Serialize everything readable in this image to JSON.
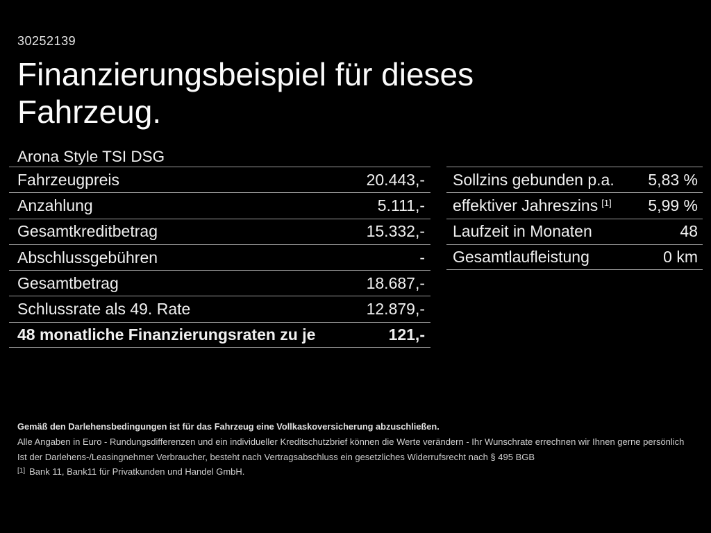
{
  "page": {
    "vehicle_id": "30252139",
    "title": "Finanzierungsbeispiel für dieses Fahrzeug.",
    "subtitle": "Arona Style TSI DSG"
  },
  "left_table": {
    "rows": [
      {
        "label": "Fahrzeugpreis",
        "value": "20.443,-"
      },
      {
        "label": "Anzahlung",
        "value": "5.111,-"
      },
      {
        "label": "Gesamtkreditbetrag",
        "value": "15.332,-"
      },
      {
        "label": "Abschlussgebühren",
        "value": "-"
      },
      {
        "label": "Gesamtbetrag",
        "value": "18.687,-"
      },
      {
        "label": "Schlussrate als 49. Rate",
        "value": "12.879,-"
      },
      {
        "label": "48 monatliche Finanzierungsraten zu je",
        "value": "121,-"
      }
    ]
  },
  "right_table": {
    "rows": [
      {
        "label": "Sollzins gebunden p.a.",
        "value": "5,83 %"
      },
      {
        "label": "effektiver Jahreszins",
        "label_sup": "[1]",
        "value": "5,99 %"
      },
      {
        "label": "Laufzeit in Monaten",
        "value": "48"
      },
      {
        "label": "Gesamtlaufleistung",
        "value": "0 km"
      }
    ]
  },
  "fineprint": {
    "insurance": "Gemäß den Darlehensbedingungen ist für das Fahrzeug eine Vollkaskoversicherung abzuschließen.",
    "general": "Alle Angaben in Euro - Rundungsdifferenzen und ein individueller Kreditschutzbrief können die Werte verändern - Ihr Wunschrate errechnen wir Ihnen gerne persönlich",
    "withdrawal": "Ist der Darlehens-/Leasingnehmer Verbraucher, besteht nach Vertragsabschluss ein gesetzliches Widerrufsrecht nach § 495 BGB",
    "footnote_marker": "[1]",
    "footnote_text": "Bank 11, Bank11 für Privatkunden und Handel GmbH."
  },
  "colors": {
    "background": "#000000",
    "text": "#f2f2f2",
    "separator_line": "#9f9f9f"
  }
}
